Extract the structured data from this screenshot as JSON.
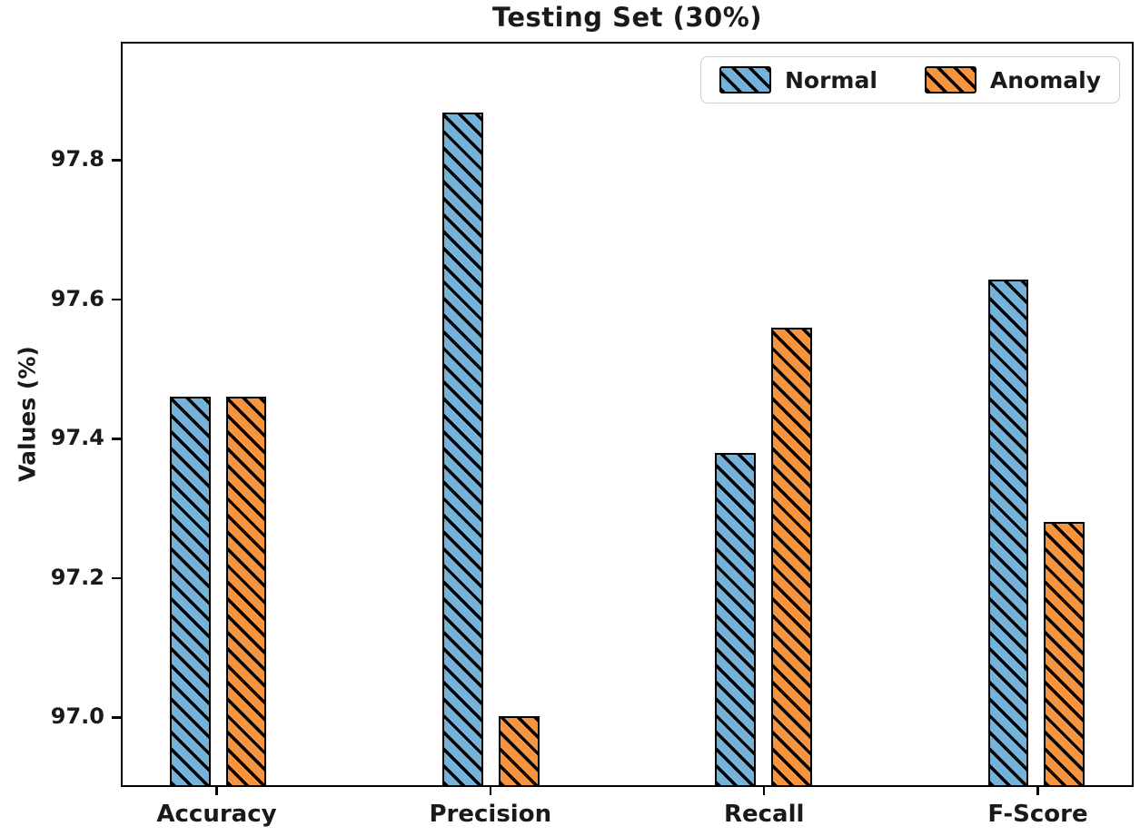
{
  "chart_data": {
    "type": "bar",
    "title": "Testing Set (30%)",
    "xlabel": "",
    "ylabel": "Values (%)",
    "categories": [
      "Accuracy",
      "Precision",
      "Recall",
      "F-Score"
    ],
    "series": [
      {
        "name": "Normal",
        "color": "#74b2d9",
        "values": [
          97.46,
          97.87,
          97.38,
          97.63
        ]
      },
      {
        "name": "Anomaly",
        "color": "#f6943e",
        "values": [
          97.46,
          97.0,
          97.56,
          97.28
        ]
      }
    ],
    "ylim": [
      96.9,
      97.97
    ],
    "yticks": [
      97.0,
      97.2,
      97.4,
      97.6,
      97.8
    ],
    "ytick_labels": [
      "97.0",
      "97.2",
      "97.4",
      "97.6",
      "97.8"
    ],
    "grid": false,
    "legend_position": "upper right",
    "hatch": "\\\\",
    "bar_edge_color": "#000000",
    "spine_color": "#000000"
  }
}
